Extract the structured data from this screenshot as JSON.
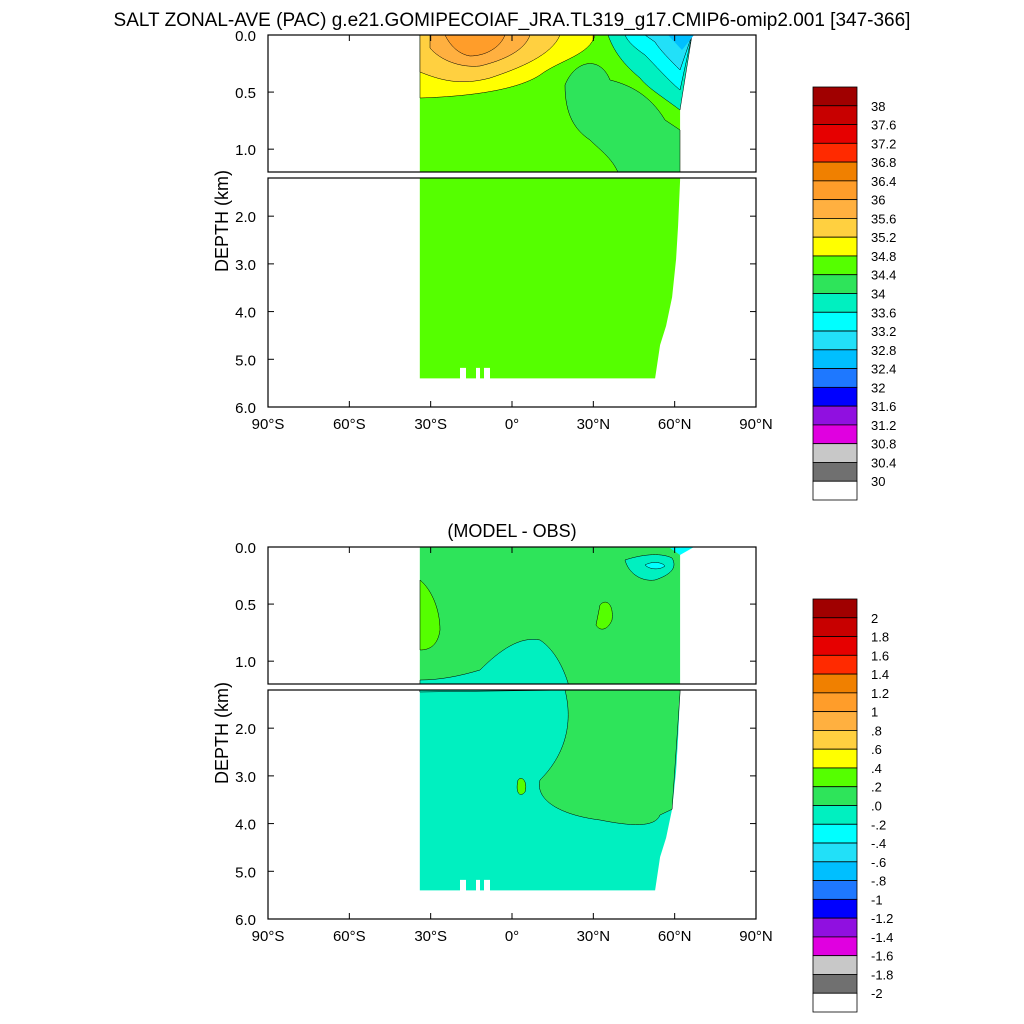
{
  "title": "SALT ZONAL-AVE (PAC) g.e21.GOMIPECOIAF_JRA.TL319_g17.CMIP6-omip2.001 [347-366]",
  "chart_data": [
    {
      "type": "heatmap",
      "panel": "top",
      "title": "",
      "ylabel": "DEPTH (km)",
      "xlabel": "",
      "x_ticks": [
        "90°S",
        "60°S",
        "30°S",
        "0°",
        "30°N",
        "60°N",
        "90°N"
      ],
      "x_tick_values": [
        -90,
        -60,
        -30,
        0,
        30,
        60,
        90
      ],
      "y_ticks": [
        "0.0",
        "0.5",
        "1.0",
        "2.0",
        "3.0",
        "4.0",
        "5.0",
        "6.0"
      ],
      "y_tick_values": [
        0.0,
        0.5,
        1.0,
        2.0,
        3.0,
        4.0,
        5.0,
        6.0
      ],
      "xlim": [
        -90,
        90
      ],
      "ylim": [
        6.0,
        0.0
      ],
      "y_break_km": 1.2,
      "data_extent": {
        "lat": [
          -34,
          62
        ],
        "max_depth_km": 5.4
      },
      "dominant_value": "34.4 - 34.8",
      "features": [
        {
          "description": "salinity maximum near surface",
          "lat": [
            -33,
            -5
          ],
          "depth_km": [
            0,
            0.45
          ],
          "value_range": "35.2 - 36.0"
        },
        {
          "description": "fresher near-surface water",
          "lat": [
            40,
            62
          ],
          "depth_km": [
            0,
            0.4
          ],
          "value_range": "32.8 - 34.0"
        },
        {
          "description": "intermediate water",
          "lat": [
            20,
            45
          ],
          "depth_km": [
            0.4,
            1.2
          ],
          "value_range": "34.0 - 34.4"
        }
      ],
      "colorbar": {
        "labels": [
          "38",
          "37.6",
          "37.2",
          "36.8",
          "36.4",
          "36",
          "35.6",
          "35.2",
          "34.8",
          "34.4",
          "34",
          "33.6",
          "33.2",
          "32.8",
          "32.4",
          "32",
          "31.6",
          "31.2",
          "30.8",
          "30.4",
          "30"
        ],
        "colors": [
          "#a00000",
          "#c80000",
          "#e60000",
          "#ff2a00",
          "#f08000",
          "#ff9d2a",
          "#ffb040",
          "#ffd040",
          "#ffff00",
          "#55ff00",
          "#2ee45a",
          "#00f0c0",
          "#00ffff",
          "#22e0f8",
          "#00bfff",
          "#1e78ff",
          "#0000ff",
          "#9010e0",
          "#e000e0",
          "#c8c8c8",
          "#707070",
          "#ffffff"
        ]
      }
    },
    {
      "type": "heatmap",
      "panel": "bottom",
      "title": "(MODEL - OBS)",
      "ylabel": "DEPTH (km)",
      "xlabel": "",
      "x_ticks": [
        "90°S",
        "60°S",
        "30°S",
        "0°",
        "30°N",
        "60°N",
        "90°N"
      ],
      "x_tick_values": [
        -90,
        -60,
        -30,
        0,
        30,
        60,
        90
      ],
      "y_ticks": [
        "0.0",
        "0.5",
        "1.0",
        "2.0",
        "3.0",
        "4.0",
        "5.0",
        "6.0"
      ],
      "y_tick_values": [
        0.0,
        0.5,
        1.0,
        2.0,
        3.0,
        4.0,
        5.0,
        6.0
      ],
      "xlim": [
        -90,
        90
      ],
      "ylim": [
        6.0,
        0.0
      ],
      "y_break_km": 1.2,
      "data_extent": {
        "lat": [
          -34,
          62
        ],
        "max_depth_km": 5.4
      },
      "features": [
        {
          "description": "slightly positive upper ocean",
          "value_range": "0.0 - 0.2"
        },
        {
          "description": "negative deep southern water",
          "lat": [
            -34,
            10
          ],
          "depth_km": [
            0.8,
            5.4
          ],
          "value_range": "-0.2 - 0.0"
        },
        {
          "description": "positive deep northern water",
          "lat": [
            10,
            62
          ],
          "depth_km": [
            1.2,
            4.0
          ],
          "value_range": "0.0 - 0.2"
        },
        {
          "description": "small patch",
          "lat": [
            -33,
            -28
          ],
          "depth_km": [
            0.1,
            0.6
          ],
          "value_range": "0.2 - 0.4"
        }
      ],
      "colorbar": {
        "labels": [
          "2",
          "1.8",
          "1.6",
          "1.4",
          "1.2",
          "1",
          ".8",
          ".6",
          ".4",
          ".2",
          ".0",
          "-.2",
          "-.4",
          "-.6",
          "-.8",
          "-1",
          "-1.2",
          "-1.4",
          "-1.6",
          "-1.8",
          "-2"
        ],
        "colors": [
          "#a00000",
          "#c80000",
          "#e60000",
          "#ff2a00",
          "#f08000",
          "#ff9d2a",
          "#ffb040",
          "#ffd040",
          "#ffff00",
          "#55ff00",
          "#2ee45a",
          "#00f0c0",
          "#00ffff",
          "#22e0f8",
          "#00bfff",
          "#1e78ff",
          "#0000ff",
          "#9010e0",
          "#e000e0",
          "#c8c8c8",
          "#707070",
          "#ffffff"
        ]
      }
    }
  ]
}
